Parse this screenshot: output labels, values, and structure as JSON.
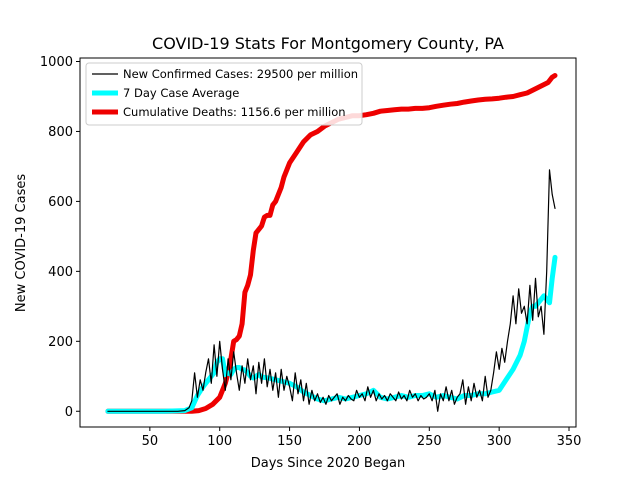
{
  "chart_data": {
    "type": "line",
    "title": "COVID-19 Stats For Montgomery County, PA",
    "xlabel": "Days Since 2020 Began",
    "ylabel": "New COVID-19 Cases",
    "xlim": [
      0,
      355
    ],
    "ylim": [
      -45,
      1010
    ],
    "xticks": [
      50,
      100,
      150,
      200,
      250,
      300,
      350
    ],
    "yticks": [
      0,
      200,
      400,
      600,
      800,
      1000
    ],
    "grid": false,
    "legend_position": "top-left",
    "series": [
      {
        "name": "New Confirmed Cases: 29500 per million",
        "color": "#000000",
        "x": [
          20,
          30,
          40,
          50,
          60,
          70,
          75,
          78,
          80,
          82,
          84,
          86,
          88,
          90,
          92,
          94,
          96,
          98,
          100,
          102,
          104,
          106,
          108,
          110,
          112,
          114,
          116,
          118,
          120,
          122,
          124,
          126,
          128,
          130,
          132,
          134,
          136,
          138,
          140,
          142,
          144,
          146,
          148,
          150,
          152,
          154,
          156,
          158,
          160,
          162,
          164,
          166,
          168,
          170,
          172,
          174,
          176,
          178,
          180,
          182,
          184,
          186,
          188,
          190,
          192,
          194,
          196,
          198,
          200,
          202,
          204,
          206,
          208,
          210,
          212,
          214,
          216,
          218,
          220,
          222,
          224,
          226,
          228,
          230,
          232,
          234,
          236,
          238,
          240,
          242,
          244,
          246,
          248,
          250,
          252,
          254,
          256,
          258,
          260,
          262,
          264,
          266,
          268,
          270,
          272,
          274,
          276,
          278,
          280,
          282,
          284,
          286,
          288,
          290,
          292,
          294,
          296,
          298,
          300,
          302,
          304,
          306,
          308,
          310,
          312,
          314,
          316,
          318,
          320,
          322,
          324,
          326,
          328,
          330,
          332,
          334,
          336,
          338,
          340
        ],
        "y": [
          0,
          0,
          0,
          0,
          0,
          0,
          2,
          10,
          30,
          110,
          40,
          90,
          60,
          110,
          150,
          80,
          190,
          100,
          200,
          120,
          60,
          150,
          90,
          170,
          110,
          60,
          130,
          80,
          150,
          90,
          130,
          50,
          140,
          80,
          150,
          70,
          120,
          60,
          110,
          40,
          120,
          60,
          100,
          70,
          30,
          110,
          50,
          90,
          30,
          80,
          20,
          60,
          30,
          50,
          25,
          40,
          20,
          45,
          30,
          40,
          50,
          20,
          40,
          30,
          45,
          35,
          30,
          60,
          40,
          50,
          30,
          70,
          40,
          60,
          30,
          50,
          35,
          45,
          30,
          50,
          40,
          30,
          55,
          35,
          45,
          30,
          60,
          40,
          50,
          30,
          45,
          35,
          40,
          50,
          30,
          60,
          0,
          50,
          30,
          70,
          30,
          60,
          20,
          40,
          50,
          90,
          20,
          70,
          30,
          80,
          40,
          60,
          30,
          100,
          40,
          60,
          110,
          170,
          120,
          180,
          140,
          200,
          250,
          330,
          250,
          350,
          280,
          300,
          250,
          360,
          260,
          380,
          270,
          300,
          220,
          400,
          690,
          620,
          580
        ]
      },
      {
        "name": "7 Day Case Average",
        "color": "#00ffff",
        "x": [
          20,
          40,
          60,
          75,
          80,
          84,
          88,
          92,
          96,
          98,
          100,
          102,
          104,
          106,
          108,
          110,
          112,
          114,
          116,
          118,
          120,
          122,
          124,
          126,
          128,
          130,
          135,
          140,
          145,
          150,
          155,
          160,
          165,
          170,
          175,
          180,
          185,
          190,
          195,
          200,
          205,
          210,
          215,
          220,
          225,
          230,
          235,
          240,
          245,
          250,
          255,
          260,
          265,
          270,
          275,
          280,
          285,
          290,
          295,
          300,
          305,
          310,
          315,
          318,
          320,
          322,
          324,
          326,
          328,
          330,
          332,
          334,
          336,
          338,
          340
        ],
        "y": [
          0,
          0,
          0,
          2,
          10,
          45,
          70,
          90,
          110,
          140,
          150,
          150,
          105,
          110,
          105,
          120,
          125,
          125,
          120,
          118,
          110,
          100,
          95,
          100,
          105,
          98,
          95,
          90,
          85,
          80,
          70,
          55,
          45,
          35,
          30,
          35,
          40,
          35,
          40,
          45,
          50,
          60,
          40,
          35,
          40,
          45,
          40,
          45,
          45,
          50,
          40,
          45,
          40,
          35,
          45,
          45,
          50,
          50,
          55,
          60,
          90,
          120,
          160,
          200,
          240,
          280,
          300,
          300,
          310,
          320,
          330,
          320,
          310,
          380,
          440
        ]
      },
      {
        "name": "Cumulative Deaths: 1156.6 per million",
        "color": "#ee0000",
        "x": [
          20,
          40,
          60,
          70,
          80,
          85,
          90,
          95,
          100,
          102,
          104,
          106,
          108,
          110,
          112,
          114,
          116,
          118,
          120,
          122,
          124,
          126,
          128,
          130,
          132,
          134,
          136,
          138,
          140,
          142,
          144,
          146,
          148,
          150,
          155,
          160,
          165,
          170,
          175,
          180,
          185,
          190,
          195,
          200,
          205,
          210,
          215,
          220,
          225,
          230,
          235,
          240,
          245,
          250,
          255,
          260,
          265,
          270,
          275,
          280,
          285,
          290,
          295,
          300,
          305,
          310,
          315,
          320,
          325,
          330,
          335,
          338,
          340
        ],
        "y": [
          0,
          0,
          0,
          0,
          0,
          2,
          8,
          20,
          40,
          60,
          80,
          110,
          150,
          200,
          205,
          215,
          250,
          340,
          360,
          390,
          460,
          510,
          520,
          530,
          555,
          560,
          560,
          590,
          600,
          620,
          640,
          670,
          690,
          710,
          740,
          770,
          790,
          800,
          815,
          825,
          835,
          840,
          845,
          845,
          848,
          852,
          858,
          860,
          862,
          864,
          864,
          866,
          866,
          868,
          872,
          875,
          878,
          880,
          884,
          887,
          890,
          892,
          893,
          895,
          898,
          900,
          905,
          910,
          920,
          930,
          940,
          955,
          960
        ]
      }
    ]
  }
}
